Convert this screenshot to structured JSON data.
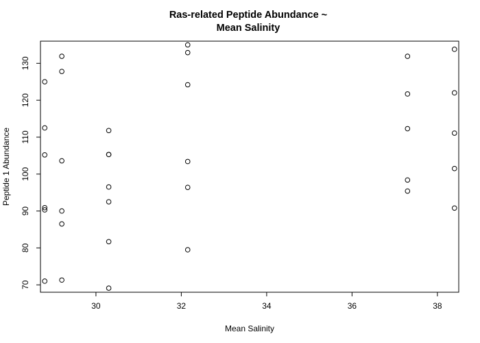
{
  "chart_data": {
    "type": "scatter",
    "title_lines": [
      "Ras-related Peptide Abundance ~",
      "Mean Salinity"
    ],
    "xlabel": "Mean Salinity",
    "ylabel": "Peptide 1 Abundance",
    "xlim": [
      28.7,
      38.5
    ],
    "ylim": [
      68,
      136
    ],
    "xticks": [
      30,
      32,
      34,
      36,
      38
    ],
    "yticks": [
      70,
      80,
      90,
      100,
      110,
      120,
      130
    ],
    "grid": false,
    "marker": "open-circle",
    "series": [
      {
        "x": [
          28.8,
          28.8,
          28.8,
          28.8,
          28.8,
          28.8,
          29.2,
          29.2,
          29.2,
          29.2,
          29.2,
          29.2,
          30.3,
          30.3,
          30.3,
          30.3,
          30.3,
          30.3,
          30.3,
          32.15,
          32.15,
          32.15,
          32.15,
          32.15,
          32.15,
          37.3,
          37.3,
          37.3,
          37.3,
          37.3,
          38.4,
          38.4,
          38.4,
          38.4,
          38.4
        ],
        "y": [
          125,
          112.5,
          105.2,
          90.9,
          90.3,
          71.0,
          131.9,
          127.8,
          103.6,
          90.0,
          86.5,
          71.3,
          111.8,
          105.3,
          96.5,
          92.5,
          81.7,
          69.1,
          105.3,
          135.0,
          132.9,
          124.2,
          103.4,
          96.4,
          79.5,
          131.9,
          121.7,
          112.3,
          98.4,
          95.4,
          133.8,
          122.0,
          111.1,
          101.5,
          90.8
        ]
      }
    ]
  }
}
